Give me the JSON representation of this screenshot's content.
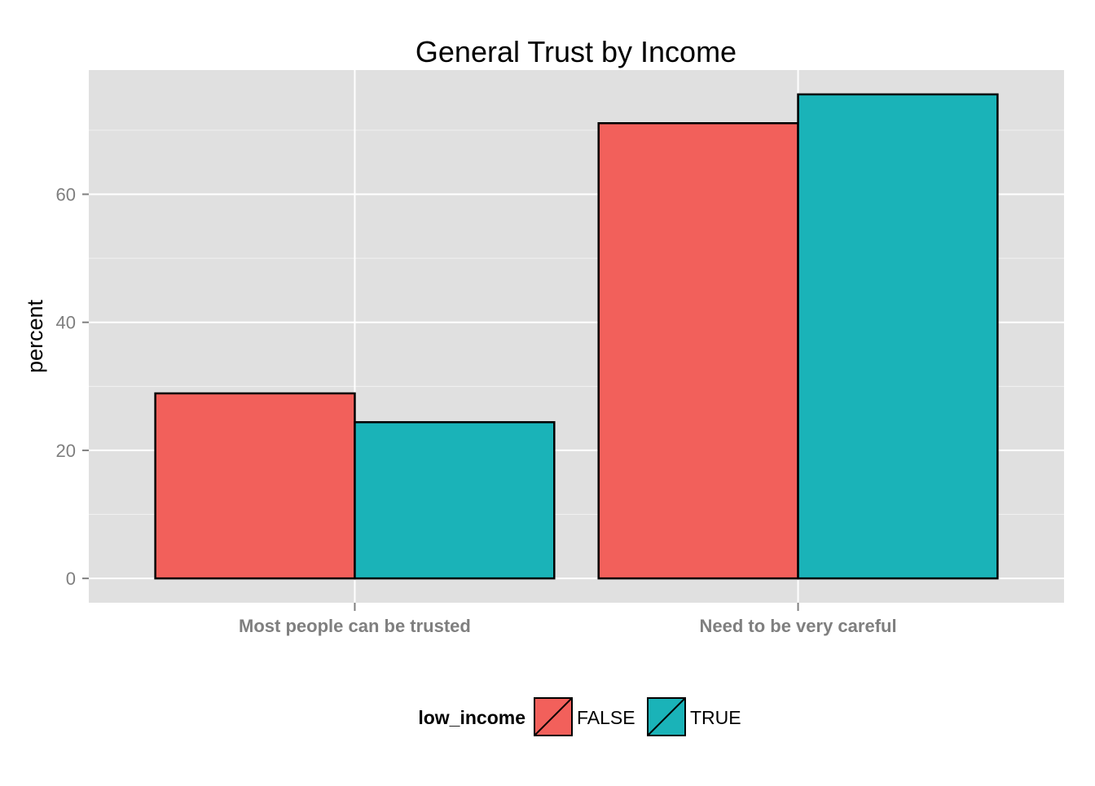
{
  "chart_data": {
    "type": "bar",
    "title": "General Trust by Income",
    "xlabel": "",
    "ylabel": "percent",
    "categories": [
      "Most people can be trusted",
      "Need to be very careful"
    ],
    "series": [
      {
        "name": "FALSE",
        "values": [
          28.9,
          71.1
        ],
        "color": "#F2605B"
      },
      {
        "name": "TRUE",
        "values": [
          24.4,
          75.6
        ],
        "color": "#1AB3B8"
      }
    ],
    "ylim": [
      -3.8,
      79.4
    ],
    "yticks": [
      0,
      20,
      40,
      60
    ],
    "grid": true,
    "legend": {
      "title": "low_income",
      "position": "bottom"
    },
    "panel_background": "#E0E0E0",
    "grid_color": "#FFFFFF"
  }
}
